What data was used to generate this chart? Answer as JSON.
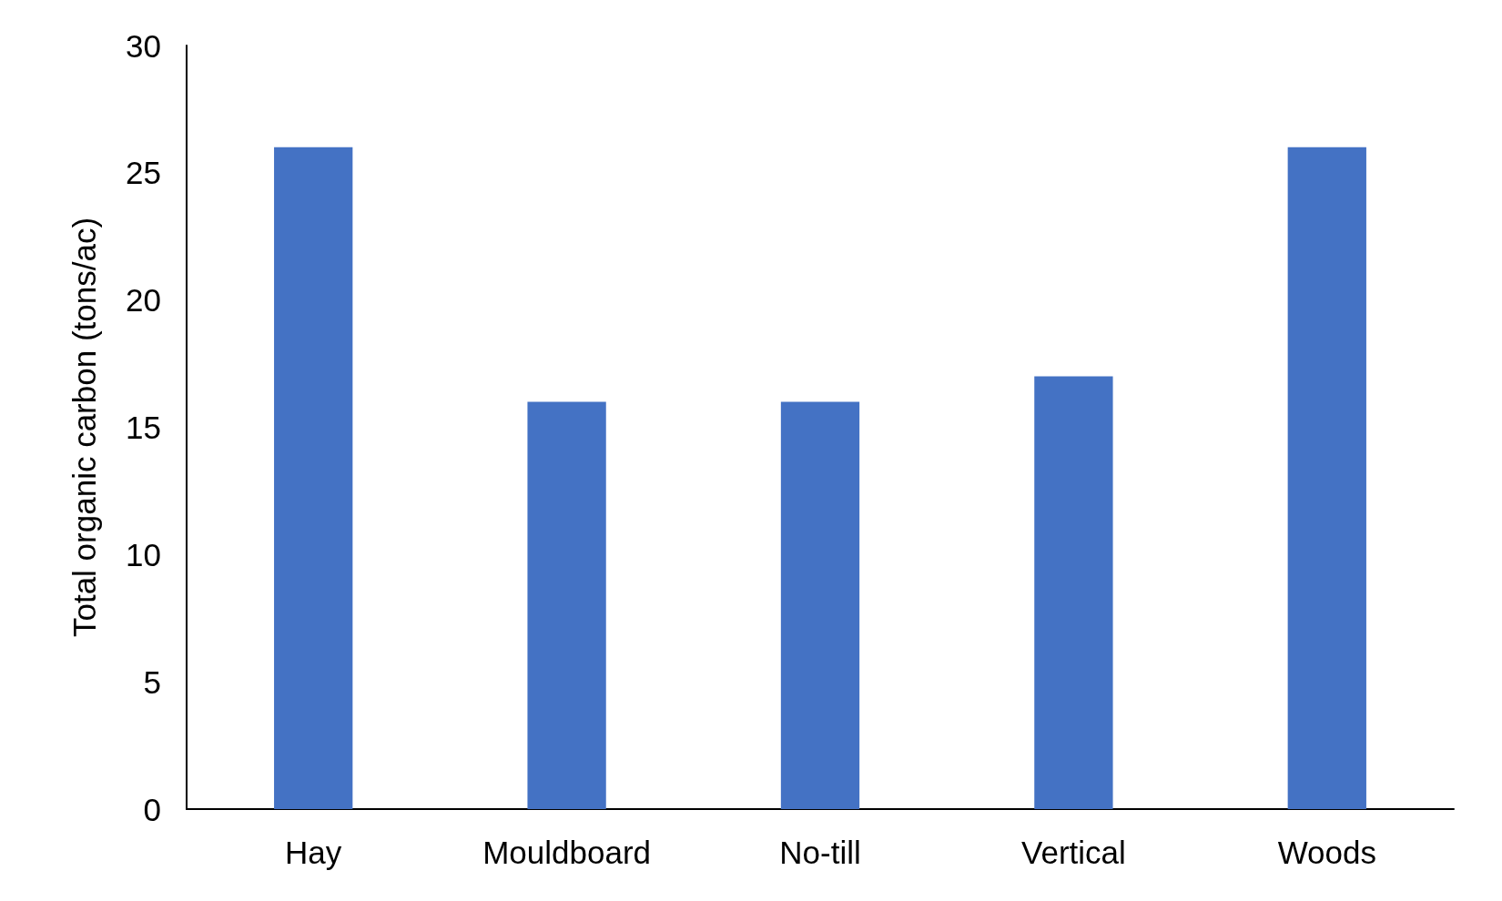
{
  "chart_data": {
    "type": "bar",
    "ylabel": "Total organic carbon (tons/ac)",
    "categories": [
      "Hay",
      "Mouldboard",
      "No-till",
      "Vertical",
      "Woods"
    ],
    "values": [
      26,
      16,
      16,
      17,
      26
    ],
    "color": "#4472c4",
    "ylim": [
      0,
      30
    ],
    "yticks": [
      0,
      5,
      10,
      15,
      20,
      25,
      30
    ],
    "grid": false
  }
}
